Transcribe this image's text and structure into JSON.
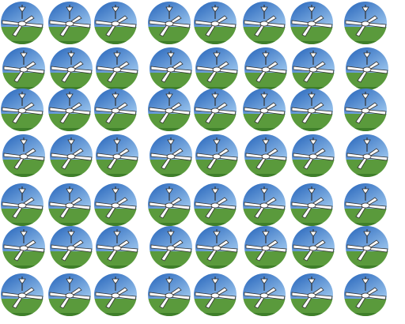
{
  "pattern": {
    "tile_icon": "ceiling-fan-icon",
    "rows": 7,
    "columns": 8,
    "colors": {
      "sky_top": "#1f5fb8",
      "sky_bottom": "#9fc8ef",
      "ground": "#5a9a3c",
      "ground_dark": "#3f7f2a",
      "fan_outline": "#333333",
      "fan_fill": "#ffffff"
    }
  }
}
